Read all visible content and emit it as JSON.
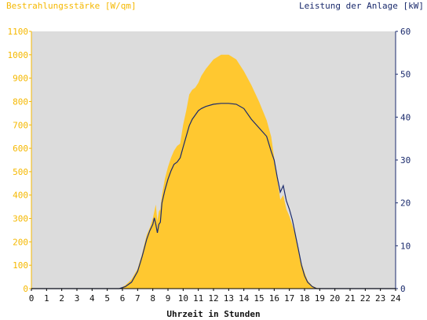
{
  "chart_data": {
    "type": "area",
    "left_axis_label": "Bestrahlungsstärke [W/qm]",
    "right_axis_label": "Leistung der Anlage [kW]",
    "xlabel": "Uhrzeit in Stunden",
    "x_ticks": [
      "0",
      "1",
      "2",
      "3",
      "4",
      "5",
      "6",
      "7",
      "8",
      "9",
      "10",
      "11",
      "12",
      "13",
      "14",
      "15",
      "16",
      "17",
      "18",
      "19",
      "20",
      "21",
      "22",
      "23",
      "24"
    ],
    "left_ticks": [
      "0",
      "100",
      "200",
      "300",
      "400",
      "500",
      "600",
      "700",
      "800",
      "900",
      "1000",
      "1100"
    ],
    "right_ticks": [
      "0",
      "10",
      "20",
      "30",
      "40",
      "50",
      "60"
    ],
    "xlim": [
      0,
      24
    ],
    "left_ylim": [
      0,
      1100
    ],
    "right_ylim": [
      0,
      60
    ],
    "grid": false,
    "colors": {
      "irradiance": "#ffc830",
      "power": "#1a2a6c",
      "plot_bg": "#dcdcdc",
      "left_axis": "#f5b800",
      "right_axis": "#1a2a6c"
    },
    "series": [
      {
        "axis": "left",
        "x": [
          5.8,
          6.2,
          6.6,
          7.0,
          7.3,
          7.6,
          7.8,
          8.0,
          8.1,
          8.2,
          8.3,
          8.4,
          8.5,
          8.6,
          8.8,
          9.0,
          9.2,
          9.4,
          9.6,
          9.8,
          10.0,
          10.2,
          10.4,
          10.6,
          10.8,
          11.0,
          11.2,
          11.5,
          12.0,
          12.5,
          13.0,
          13.5,
          14.0,
          14.5,
          15.0,
          15.5,
          15.8,
          16.0,
          16.2,
          16.4,
          16.6,
          16.8,
          17.0,
          17.2,
          17.4,
          17.6,
          17.8,
          18.0,
          18.2,
          18.5,
          18.8,
          19.0,
          19.2
        ],
        "values": [
          0,
          15,
          40,
          85,
          150,
          230,
          260,
          300,
          330,
          360,
          290,
          330,
          340,
          400,
          470,
          520,
          560,
          590,
          610,
          620,
          700,
          760,
          830,
          850,
          860,
          880,
          910,
          940,
          980,
          1000,
          1000,
          980,
          930,
          870,
          800,
          720,
          650,
          560,
          470,
          380,
          400,
          340,
          310,
          270,
          230,
          160,
          110,
          70,
          35,
          12,
          3,
          0,
          0
        ]
      },
      {
        "axis": "right",
        "x": [
          5.8,
          6.2,
          6.6,
          7.0,
          7.3,
          7.6,
          7.8,
          8.0,
          8.1,
          8.2,
          8.3,
          8.4,
          8.5,
          8.6,
          8.8,
          9.0,
          9.2,
          9.4,
          9.6,
          9.8,
          10.0,
          10.2,
          10.4,
          10.6,
          10.8,
          11.0,
          11.2,
          11.5,
          12.0,
          12.5,
          13.0,
          13.5,
          14.0,
          14.5,
          15.0,
          15.5,
          15.8,
          16.0,
          16.2,
          16.4,
          16.6,
          16.8,
          17.0,
          17.2,
          17.4,
          17.6,
          17.8,
          18.0,
          18.2,
          18.5,
          18.8,
          19.0,
          19.2
        ],
        "values": [
          0,
          0.5,
          1.5,
          4.0,
          7.5,
          11.5,
          13.5,
          15.0,
          16.5,
          15.0,
          13.0,
          15.0,
          15.5,
          20.0,
          23.0,
          25.5,
          27.5,
          29.0,
          29.5,
          30.5,
          33.0,
          35.5,
          38.0,
          39.5,
          40.5,
          41.5,
          42.0,
          42.5,
          43.0,
          43.2,
          43.2,
          43.0,
          42.0,
          39.5,
          37.5,
          35.5,
          32.0,
          30.0,
          26.0,
          22.5,
          24.0,
          20.5,
          18.5,
          16.0,
          12.5,
          9.0,
          5.5,
          3.0,
          1.5,
          0.5,
          0,
          0,
          0
        ]
      }
    ]
  }
}
